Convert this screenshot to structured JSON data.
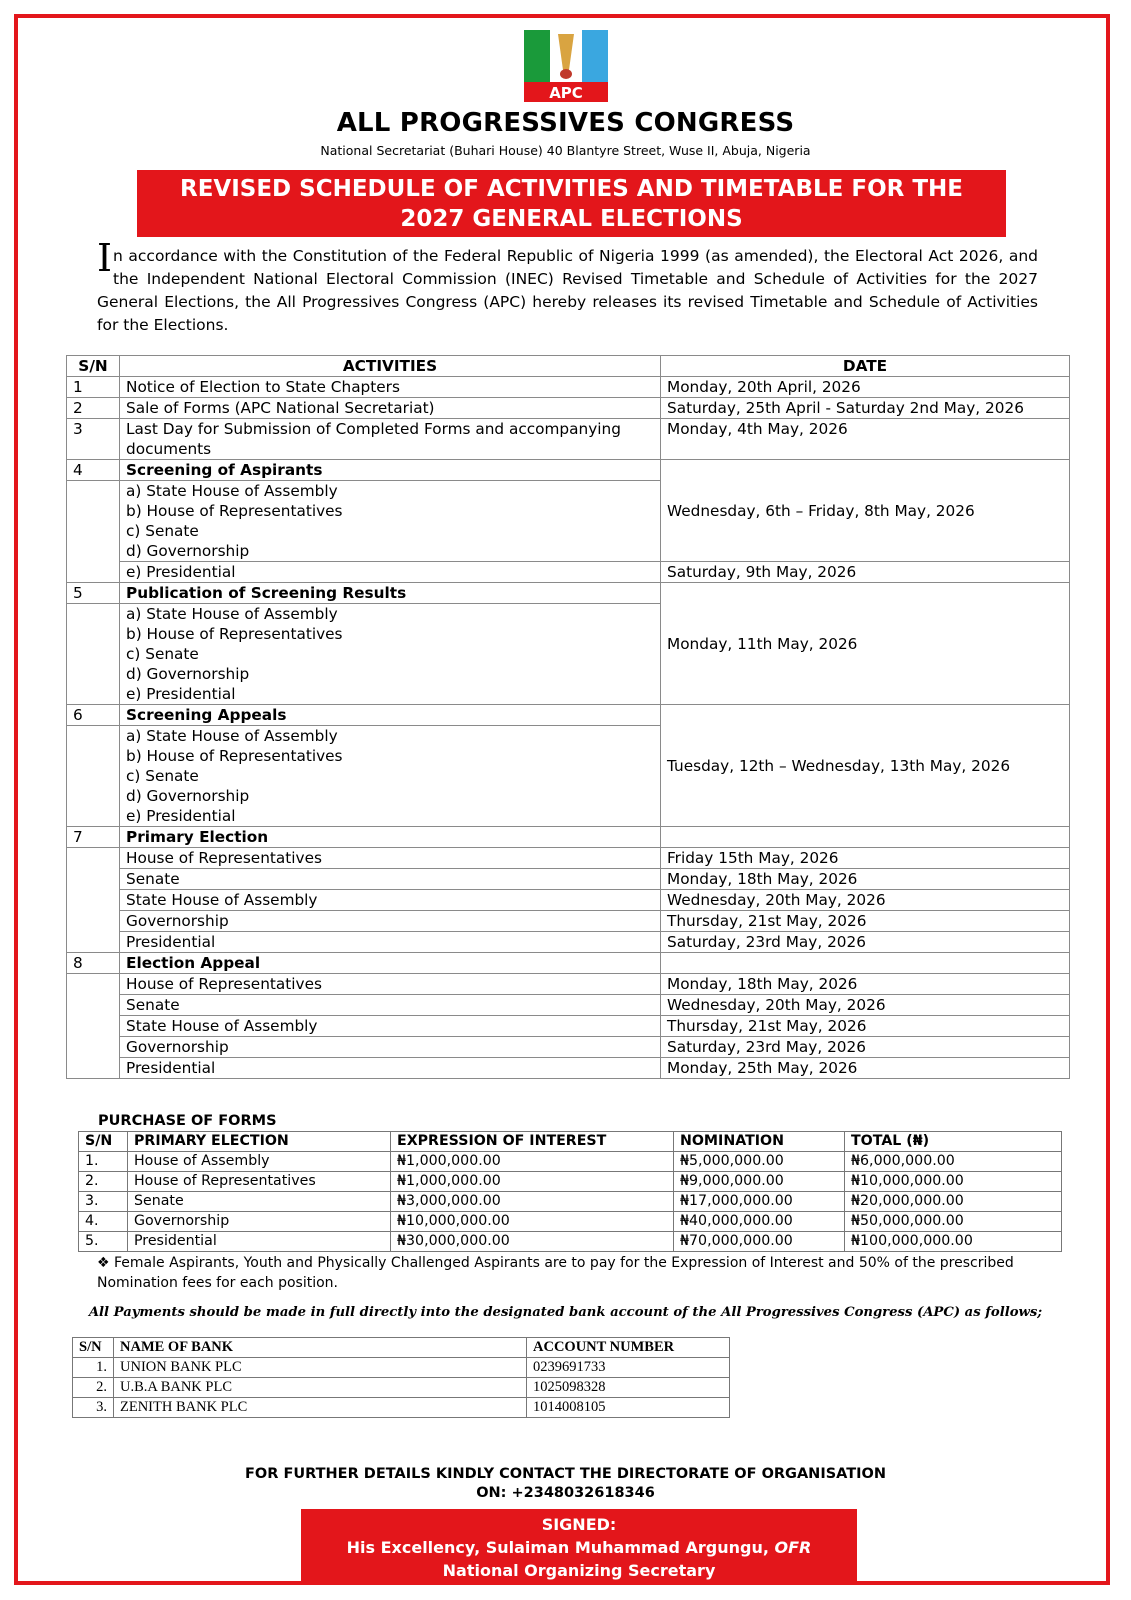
{
  "header": {
    "logo_text": "APC",
    "organization": "ALL PROGRESSIVES CONGRESS",
    "address": "National Secretariat (Buhari House) 40 Blantyre Street, Wuse II, Abuja, Nigeria",
    "title_line1": "REVISED SCHEDULE OF ACTIVITIES AND TIMETABLE FOR THE",
    "title_line2": "2027 GENERAL ELECTIONS",
    "colors": {
      "brand_red": "#e3161b",
      "green": "#1a9a3a",
      "blue": "#3aa7e0"
    }
  },
  "intro": {
    "dropcap": "I",
    "text": "n accordance with the Constitution of the Federal Republic of Nigeria 1999 (as amended), the Electoral Act 2026, and the Independent National Electoral Commission (INEC) Revised Timetable and Schedule of Activities for the 2027 General Elections, the All Progressives Congress (APC) hereby releases its revised Timetable and Schedule of Activities for the Elections."
  },
  "schedule": {
    "headers": [
      "S/N",
      "ACTIVITIES",
      "DATE"
    ],
    "groups": [
      {
        "sn": "1",
        "activity": "Notice of Election to State Chapters",
        "date": "Monday, 20th April, 2026"
      },
      {
        "sn": "2",
        "activity": "Sale of Forms (APC National Secretariat)",
        "date": "Saturday, 25th April - Saturday 2nd May, 2026"
      },
      {
        "sn": "3",
        "activity": "Last Day for Submission of Completed Forms and accompanying documents",
        "date": "Monday, 4th May, 2026"
      },
      {
        "sn": "4",
        "title": "Screening of Aspirants",
        "items": [
          "a) State House of Assembly",
          "b) House of Representatives",
          "c) Senate",
          "d) Governorship",
          "e) Presidential"
        ],
        "date_groups": [
          {
            "date": "Wednesday, 6th – Friday, 8th May, 2026",
            "count": 4
          },
          {
            "date": "Saturday, 9th May, 2026",
            "count": 1
          }
        ]
      },
      {
        "sn": "5",
        "title": "Publication of Screening Results",
        "items": [
          "a) State House of Assembly",
          "b) House of Representatives",
          "c) Senate",
          "d) Governorship",
          "e) Presidential"
        ],
        "date_groups": [
          {
            "date": "Monday, 11th May, 2026",
            "count": 5
          }
        ]
      },
      {
        "sn": "6",
        "title": "Screening Appeals",
        "items": [
          "a) State House of Assembly",
          "b) House of Representatives",
          "c) Senate",
          "d) Governorship",
          "e) Presidential"
        ],
        "date_groups": [
          {
            "date": "Tuesday, 12th – Wednesday, 13th May, 2026",
            "count": 5
          }
        ]
      },
      {
        "sn": "7",
        "title": "Primary Election",
        "dated_items": [
          {
            "label": "House of Representatives",
            "date": "Friday 15th May, 2026"
          },
          {
            "label": "Senate",
            "date": "Monday, 18th May, 2026"
          },
          {
            "label": "State House of Assembly",
            "date": "Wednesday, 20th May, 2026"
          },
          {
            "label": "Governorship",
            "date": "Thursday, 21st May, 2026"
          },
          {
            "label": "Presidential",
            "date": "Saturday, 23rd May, 2026"
          }
        ]
      },
      {
        "sn": "8",
        "title": "Election Appeal",
        "dated_items": [
          {
            "label": "House of Representatives",
            "date": "Monday, 18th May, 2026"
          },
          {
            "label": "Senate",
            "date": "Wednesday, 20th May, 2026"
          },
          {
            "label": "State House of Assembly",
            "date": "Thursday, 21st May, 2026"
          },
          {
            "label": "Governorship",
            "date": "Saturday, 23rd May, 2026"
          },
          {
            "label": "Presidential",
            "date": "Monday, 25th May, 2026"
          }
        ]
      }
    ]
  },
  "forms": {
    "title": "PURCHASE OF FORMS",
    "headers": [
      "S/N",
      "PRIMARY ELECTION",
      "EXPRESSION OF INTEREST",
      "NOMINATION",
      "TOTAL (₦)"
    ],
    "rows": [
      [
        "1.",
        "House of Assembly",
        "₦1,000,000.00",
        "₦5,000,000.00",
        "₦6,000,000.00"
      ],
      [
        "2.",
        "House of Representatives",
        "₦1,000,000.00",
        "₦9,000,000.00",
        "₦10,000,000.00"
      ],
      [
        "3.",
        "Senate",
        "₦3,000,000.00",
        "₦17,000,000.00",
        "₦20,000,000.00"
      ],
      [
        "4.",
        "Governorship",
        "₦10,000,000.00",
        "₦40,000,000.00",
        "₦50,000,000.00"
      ],
      [
        "5.",
        "Presidential",
        "₦30,000,000.00",
        "₦70,000,000.00",
        "₦100,000,000.00"
      ]
    ],
    "note": "❖ Female Aspirants, Youth and Physically Challenged Aspirants are to pay for the Expression of Interest and 50% of the prescribed Nomination fees for each position."
  },
  "payment": {
    "instruction": "All Payments should be made in full directly into the designated bank account of the All Progressives Congress (APC) as follows;",
    "headers": [
      "S/N",
      "NAME OF BANK",
      "ACCOUNT NUMBER"
    ],
    "rows": [
      [
        "1.",
        "UNION BANK PLC",
        "0239691733"
      ],
      [
        "2.",
        "U.B.A BANK PLC",
        "1025098328"
      ],
      [
        "3.",
        "ZENITH BANK PLC",
        "1014008105"
      ]
    ]
  },
  "contact": {
    "line1": "FOR FURTHER DETAILS KINDLY CONTACT THE DIRECTORATE OF ORGANISATION",
    "line2": "ON: +2348032618346"
  },
  "signature": {
    "label": "SIGNED:",
    "name": "His Excellency, Sulaiman Muhammad Argungu, ",
    "honor": "OFR",
    "position": "National Organizing Secretary"
  }
}
